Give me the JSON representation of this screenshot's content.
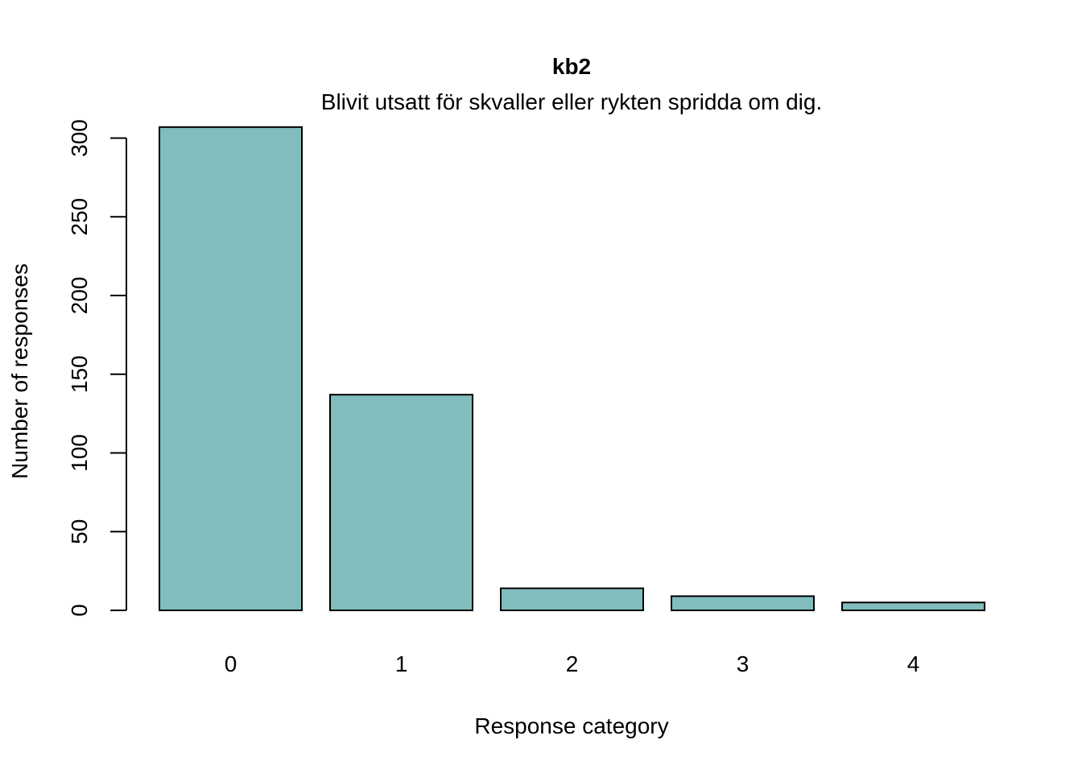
{
  "chart_data": {
    "type": "bar",
    "title": "kb2",
    "subtitle": "Blivit utsatt för skvaller eller rykten spridda om dig.",
    "xlabel": "Response category",
    "ylabel": "Number of responses",
    "categories": [
      "0",
      "1",
      "2",
      "3",
      "4"
    ],
    "values": [
      307,
      137,
      14,
      9,
      5
    ],
    "yticks": [
      0,
      50,
      100,
      150,
      200,
      250,
      300
    ],
    "ylim": [
      0,
      307
    ],
    "grid": false,
    "legend": "none",
    "bar_color": "#80bdbc",
    "border_color": "#000000"
  }
}
